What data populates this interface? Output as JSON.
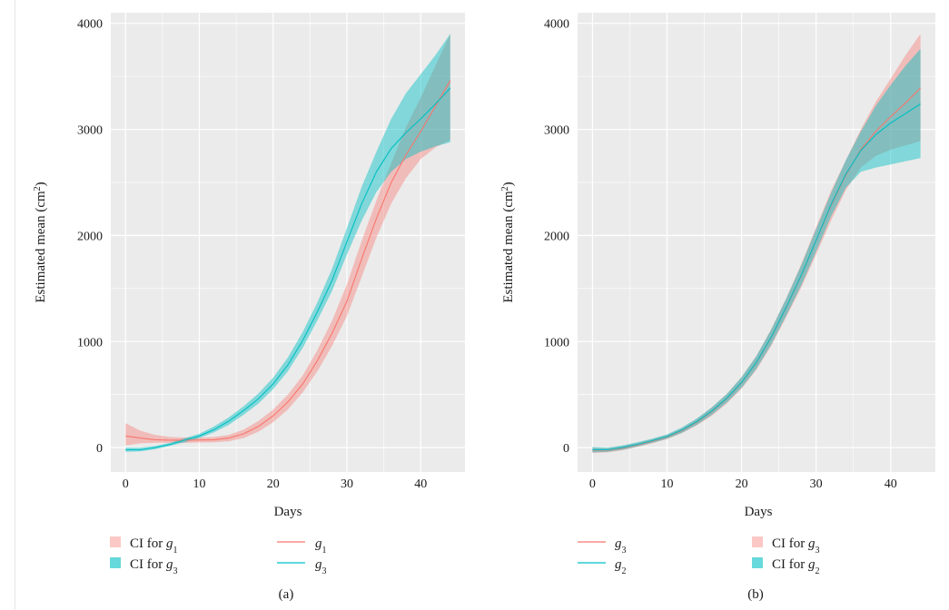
{
  "colors": {
    "panel_bg": "#EBEBEB",
    "grid": "#FFFFFF",
    "series_red": "#F8766D",
    "series_teal": "#00BFC4",
    "ci_red": "#F8766D",
    "ci_teal": "#00BFC4"
  },
  "chart_data": [
    {
      "type": "line",
      "caption": "(a)",
      "xlabel": "Days",
      "ylabel": "Estimated mean (cm",
      "ylabel_sup": "2",
      "ylabel_tail": ")",
      "xlim": [
        -2,
        46
      ],
      "ylim": [
        -230,
        4100
      ],
      "xticks": [
        0,
        10,
        20,
        30,
        40
      ],
      "yticks": [
        0,
        1000,
        2000,
        3000,
        4000
      ],
      "grid": true,
      "x": [
        0,
        2,
        4,
        6,
        8,
        10,
        12,
        14,
        16,
        18,
        20,
        22,
        24,
        26,
        28,
        30,
        32,
        34,
        36,
        38,
        40,
        42,
        44
      ],
      "series": [
        {
          "key": "g1",
          "color": "#F8766D",
          "values": [
            110,
            90,
            75,
            70,
            70,
            72,
            75,
            90,
            130,
            200,
            300,
            430,
            600,
            820,
            1080,
            1380,
            1780,
            2160,
            2500,
            2760,
            2980,
            3220,
            3460
          ],
          "ci_lower": [
            20,
            40,
            45,
            45,
            45,
            48,
            50,
            60,
            90,
            150,
            240,
            360,
            520,
            720,
            960,
            1240,
            1610,
            1980,
            2300,
            2540,
            2720,
            2830,
            2900
          ],
          "ci_upper": [
            230,
            160,
            120,
            100,
            95,
            95,
            100,
            120,
            170,
            250,
            360,
            500,
            680,
            920,
            1200,
            1540,
            1950,
            2330,
            2680,
            3020,
            3300,
            3600,
            3900
          ]
        },
        {
          "key": "g3",
          "color": "#00BFC4",
          "values": [
            -20,
            -20,
            0,
            30,
            70,
            110,
            170,
            250,
            350,
            460,
            600,
            780,
            1010,
            1280,
            1580,
            1940,
            2300,
            2600,
            2820,
            2970,
            3100,
            3240,
            3390
          ],
          "ci_lower": [
            -40,
            -35,
            -15,
            15,
            50,
            90,
            145,
            215,
            310,
            415,
            550,
            720,
            940,
            1200,
            1480,
            1820,
            2140,
            2410,
            2600,
            2720,
            2790,
            2840,
            2880
          ],
          "ci_upper": [
            0,
            0,
            15,
            45,
            90,
            130,
            200,
            285,
            390,
            510,
            660,
            850,
            1090,
            1370,
            1690,
            2070,
            2460,
            2790,
            3100,
            3340,
            3520,
            3700,
            3900
          ]
        }
      ],
      "legend": {
        "ci_label_1": "CI for",
        "ci_label_1_var": "g",
        "ci_label_1_sub": "1",
        "ci_label_2": "CI for",
        "ci_label_2_var": "g",
        "ci_label_2_sub": "3",
        "line_label_1_var": "g",
        "line_label_1_sub": "1",
        "line_label_2_var": "g",
        "line_label_2_sub": "3"
      }
    },
    {
      "type": "line",
      "caption": "(b)",
      "xlabel": "Days",
      "ylabel": "Estimated mean (cm",
      "ylabel_sup": "2",
      "ylabel_tail": ")",
      "xlim": [
        -2,
        46
      ],
      "ylim": [
        -230,
        4100
      ],
      "xticks": [
        0,
        10,
        20,
        30,
        40
      ],
      "yticks": [
        0,
        1000,
        2000,
        3000,
        4000
      ],
      "grid": true,
      "x": [
        0,
        2,
        4,
        6,
        8,
        10,
        12,
        14,
        16,
        18,
        20,
        22,
        24,
        26,
        28,
        30,
        32,
        34,
        36,
        38,
        40,
        42,
        44
      ],
      "series": [
        {
          "key": "g3",
          "color": "#F8766D",
          "values": [
            -25,
            -25,
            -5,
            25,
            60,
            100,
            160,
            240,
            340,
            460,
            610,
            800,
            1040,
            1320,
            1620,
            1950,
            2280,
            2570,
            2810,
            2980,
            3120,
            3250,
            3390
          ],
          "ci_lower": [
            -50,
            -45,
            -25,
            5,
            40,
            80,
            135,
            210,
            300,
            415,
            555,
            735,
            960,
            1230,
            1510,
            1820,
            2140,
            2430,
            2640,
            2750,
            2810,
            2850,
            2890
          ],
          "ci_upper": [
            0,
            -5,
            15,
            45,
            80,
            120,
            185,
            270,
            380,
            505,
            665,
            865,
            1120,
            1410,
            1730,
            2080,
            2420,
            2710,
            3000,
            3260,
            3480,
            3700,
            3900
          ]
        },
        {
          "key": "g2",
          "color": "#00BFC4",
          "values": [
            -20,
            -20,
            0,
            30,
            65,
            105,
            165,
            245,
            345,
            465,
            615,
            805,
            1045,
            1325,
            1625,
            1955,
            2290,
            2580,
            2800,
            2950,
            3060,
            3150,
            3240
          ],
          "ci_lower": [
            -45,
            -40,
            -20,
            10,
            45,
            85,
            140,
            215,
            310,
            425,
            565,
            745,
            975,
            1245,
            1530,
            1850,
            2180,
            2450,
            2600,
            2640,
            2670,
            2700,
            2730
          ],
          "ci_upper": [
            5,
            0,
            20,
            50,
            85,
            125,
            190,
            275,
            380,
            505,
            665,
            865,
            1115,
            1405,
            1720,
            2060,
            2400,
            2710,
            2980,
            3220,
            3420,
            3600,
            3760
          ]
        }
      ],
      "legend": {
        "line_label_1_var": "g",
        "line_label_1_sub": "3",
        "line_label_2_var": "g",
        "line_label_2_sub": "2",
        "ci_label_1": "CI for",
        "ci_label_1_var": "g",
        "ci_label_1_sub": "3",
        "ci_label_2": "CI for",
        "ci_label_2_var": "g",
        "ci_label_2_sub": "2"
      }
    }
  ]
}
